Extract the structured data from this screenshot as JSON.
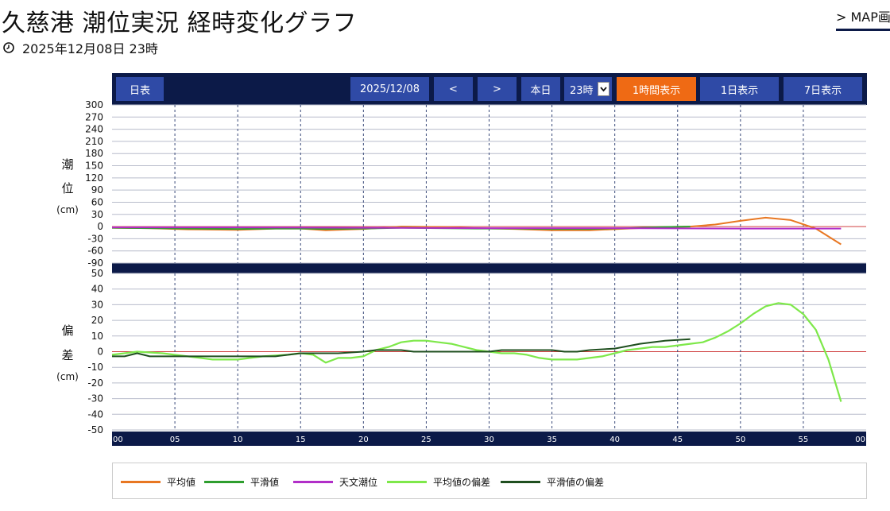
{
  "header": {
    "title": "久慈港 潮位実況 経時変化グラフ",
    "datetime": "2025年12月08日 23時",
    "map_link": "> MAP画面"
  },
  "toolbar": {
    "daily_table": "日表",
    "date": "2025/12/08",
    "prev": "<",
    "next": ">",
    "today": "本日",
    "hour_value": "23時",
    "view_1h": "1時間表示",
    "view_1d": "1日表示",
    "view_7d": "7日表示"
  },
  "colors": {
    "nav_bg": "#0c1a48",
    "button": "#2f4aa6",
    "active": "#ef6a14",
    "mean": "#e87722",
    "smoothed": "#2e9e2e",
    "astro": "#b12fc8",
    "mean_dev": "#7ee84a",
    "smoothed_dev": "#1f4f1f",
    "zero": "#d04040"
  },
  "chart_data": [
    {
      "type": "line",
      "ylabel": [
        "潮",
        "位",
        "(cm)"
      ],
      "ylim": [
        -90,
        300
      ],
      "yticks": [
        300,
        270,
        240,
        210,
        180,
        150,
        120,
        90,
        60,
        30,
        0,
        -30,
        -60,
        -90
      ],
      "xlim": [
        0,
        60
      ],
      "xticks": [
        "00",
        "05",
        "10",
        "15",
        "20",
        "25",
        "30",
        "35",
        "40",
        "45",
        "50",
        "55",
        "00"
      ],
      "grid": true,
      "series": [
        {
          "name": "平均値",
          "color_key": "mean",
          "x": [
            0,
            3,
            6,
            10,
            13,
            15,
            17,
            20,
            23,
            26,
            29,
            32,
            35,
            38,
            41,
            44,
            46,
            48,
            50,
            52,
            54,
            56,
            58
          ],
          "y": [
            -3,
            -4,
            -7,
            -8,
            -5,
            -5,
            -9,
            -6,
            0,
            -1,
            -4,
            -6,
            -9,
            -9,
            -5,
            -1,
            0,
            5,
            14,
            22,
            16,
            -5,
            -44
          ]
        },
        {
          "name": "平滑値",
          "color_key": "smoothed",
          "x": [
            0,
            3,
            6,
            10,
            13,
            15,
            17,
            20,
            23,
            26,
            29,
            32,
            35,
            38,
            41,
            44,
            46
          ],
          "y": [
            -3,
            -4,
            -5,
            -6,
            -5,
            -5,
            -6,
            -5,
            -3,
            -4,
            -5,
            -5,
            -6,
            -6,
            -4,
            -1,
            0
          ]
        },
        {
          "name": "天文潮位",
          "color_key": "astro",
          "x": [
            0,
            10,
            20,
            30,
            40,
            50,
            58
          ],
          "y": [
            -2,
            -2,
            -3,
            -4,
            -4,
            -5,
            -5
          ]
        }
      ]
    },
    {
      "type": "line",
      "ylabel": [
        "偏",
        "差",
        "(cm)"
      ],
      "ylim": [
        -50,
        50
      ],
      "yticks": [
        50,
        40,
        30,
        20,
        10,
        0,
        -10,
        -20,
        -30,
        -40,
        -50
      ],
      "xlim": [
        0,
        60
      ],
      "xticks": [
        "00",
        "05",
        "10",
        "15",
        "20",
        "25",
        "30",
        "35",
        "40",
        "45",
        "50",
        "55",
        "00"
      ],
      "grid": true,
      "series": [
        {
          "name": "平均値の偏差",
          "color_key": "mean_dev",
          "x": [
            0,
            1,
            2,
            4,
            6,
            8,
            10,
            12,
            14,
            15,
            16,
            17,
            18,
            19,
            20,
            21,
            22,
            23,
            24,
            25,
            26,
            27,
            28,
            29,
            30,
            31,
            32,
            33,
            34,
            35,
            36,
            37,
            38,
            39,
            40,
            41,
            42,
            43,
            44,
            45,
            46,
            47,
            48,
            49,
            50,
            51,
            52,
            53,
            54,
            55,
            56,
            57,
            58
          ],
          "y": [
            -2,
            -1,
            0,
            -1,
            -3,
            -5,
            -5,
            -3,
            -2,
            -1,
            -2,
            -7,
            -4,
            -4,
            -3,
            1,
            3,
            6,
            7,
            7,
            6,
            5,
            3,
            1,
            0,
            -1,
            -1,
            -2,
            -4,
            -5,
            -5,
            -5,
            -4,
            -3,
            -1,
            1,
            2,
            3,
            3,
            4,
            5,
            6,
            9,
            13,
            18,
            24,
            29,
            31,
            30,
            24,
            14,
            -5,
            -32
          ]
        },
        {
          "name": "平滑値の偏差",
          "color_key": "smoothed_dev",
          "x": [
            0,
            1,
            2,
            3,
            5,
            8,
            10,
            13,
            15,
            18,
            20,
            21,
            22,
            23,
            24,
            25,
            28,
            30,
            31,
            33,
            35,
            36,
            37,
            38,
            40,
            42,
            44,
            46
          ],
          "y": [
            -3,
            -3,
            -1,
            -3,
            -3,
            -3,
            -3,
            -3,
            -1,
            -1,
            0,
            1,
            1,
            1,
            0,
            0,
            0,
            0,
            1,
            1,
            1,
            0,
            0,
            1,
            2,
            5,
            7,
            8
          ]
        }
      ]
    }
  ],
  "legend": [
    {
      "label": "平均値",
      "color_key": "mean"
    },
    {
      "label": "平滑値",
      "color_key": "smoothed"
    },
    {
      "label": "天文潮位",
      "color_key": "astro"
    },
    {
      "label": "平均値の偏差",
      "color_key": "mean_dev"
    },
    {
      "label": "平滑値の偏差",
      "color_key": "smoothed_dev"
    }
  ]
}
